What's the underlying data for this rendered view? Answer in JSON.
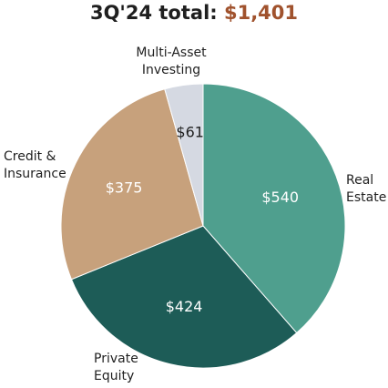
{
  "header": {
    "title_prefix": "3Q'24 total:",
    "title_value": "$1,401"
  },
  "colors": {
    "title_value": "#a0522d",
    "value_label_dark": "#1f1f1f",
    "value_label_light": "#ffffff"
  },
  "chart_data": {
    "type": "pie",
    "title": "3Q'24 total: $1,401",
    "categories": [
      "Real Estate",
      "Private Equity",
      "Credit & Insurance",
      "Multi-Asset Investing"
    ],
    "values": [
      540,
      424,
      375,
      61
    ],
    "value_labels": [
      "$540",
      "$424",
      "$375",
      "$61"
    ],
    "label_lines": [
      [
        "Real",
        "Estate"
      ],
      [
        "Private",
        "Equity"
      ],
      [
        "Credit &",
        "Insurance"
      ],
      [
        "Multi-Asset",
        "Investing"
      ]
    ],
    "colors": [
      "#4f9f8e",
      "#1d5c57",
      "#c7a17c",
      "#d5d9e2"
    ],
    "start": "12 o'clock",
    "direction": "clockwise",
    "legend": "none"
  }
}
